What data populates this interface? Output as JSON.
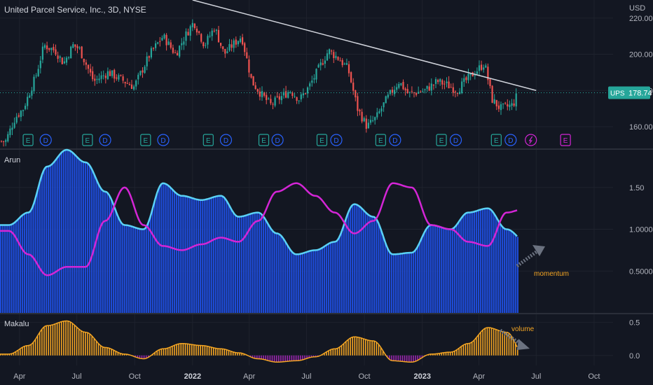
{
  "header": {
    "title": "United Parcel Service, Inc., 3D, NYSE",
    "currency": "USD"
  },
  "colors": {
    "background": "#131722",
    "up": "#26a69a",
    "down": "#ef5350",
    "trendline": "#d1d4dc",
    "arun_histogram": "#1e4bd6",
    "arun_cyan": "#5ad1f5",
    "arun_magenta": "#d425d6",
    "makalu_orange": "#f5a623",
    "makalu_purple": "#9c27b0",
    "annotation_arrow": "#6b7280",
    "momentum_text": "#f5a623",
    "volume_text": "#f5a623"
  },
  "price_pane": {
    "y_ticks": [
      "220.00",
      "200.00",
      "180.00",
      "160.00"
    ],
    "ylim": [
      148,
      230
    ],
    "last_price_badge": {
      "label": "UPS",
      "value": "178.74"
    },
    "event_markers": [
      {
        "type": "E",
        "t": 0.043
      },
      {
        "type": "D",
        "t": 0.07
      },
      {
        "type": "E",
        "t": 0.134
      },
      {
        "type": "D",
        "t": 0.161
      },
      {
        "type": "E",
        "t": 0.223
      },
      {
        "type": "D",
        "t": 0.25
      },
      {
        "type": "E",
        "t": 0.319
      },
      {
        "type": "D",
        "t": 0.346
      },
      {
        "type": "E",
        "t": 0.404
      },
      {
        "type": "D",
        "t": 0.425
      },
      {
        "type": "E",
        "t": 0.493
      },
      {
        "type": "D",
        "t": 0.515
      },
      {
        "type": "E",
        "t": 0.583
      },
      {
        "type": "D",
        "t": 0.605
      },
      {
        "type": "E",
        "t": 0.676
      },
      {
        "type": "D",
        "t": 0.698
      },
      {
        "type": "E",
        "t": 0.76
      },
      {
        "type": "D",
        "t": 0.782
      },
      {
        "type": "S",
        "t": 0.813
      },
      {
        "type": "E",
        "t": 0.866
      }
    ]
  },
  "arun_pane": {
    "title": "Arun",
    "y_ticks": [
      "1.50",
      "1.0000",
      "0.5000"
    ],
    "ylim": [
      0,
      1.95
    ],
    "annotation": "momentum"
  },
  "makalu_pane": {
    "title": "Makalu",
    "y_ticks": [
      "0.5",
      "0.0"
    ],
    "ylim": [
      -0.15,
      0.62
    ],
    "annotation": "volume"
  },
  "x_axis": {
    "labels": [
      {
        "text": "Apr",
        "bold": false
      },
      {
        "text": "Jul",
        "bold": false
      },
      {
        "text": "Oct",
        "bold": false
      },
      {
        "text": "2022",
        "bold": true
      },
      {
        "text": "Apr",
        "bold": false
      },
      {
        "text": "Jul",
        "bold": false
      },
      {
        "text": "Oct",
        "bold": false
      },
      {
        "text": "2023",
        "bold": true
      },
      {
        "text": "Apr",
        "bold": false
      },
      {
        "text": "Jul",
        "bold": false
      },
      {
        "text": "Oct",
        "bold": false
      }
    ]
  },
  "chart_data": [
    {
      "type": "candlestick",
      "title": "United Parcel Service, Inc., 3D, NYSE",
      "x_range": [
        "2021-03",
        "2023-10"
      ],
      "y_range": [
        148,
        230
      ],
      "close_anchors": [
        [
          "2021-03-10",
          152
        ],
        [
          "2021-03-25",
          165
        ],
        [
          "2021-04-07",
          170
        ],
        [
          "2021-04-27",
          188
        ],
        [
          "2021-05-10",
          205
        ],
        [
          "2021-05-28",
          202
        ],
        [
          "2021-06-10",
          195
        ],
        [
          "2021-06-25",
          205
        ],
        [
          "2021-07-05",
          203
        ],
        [
          "2021-07-28",
          185
        ],
        [
          "2021-08-20",
          190
        ],
        [
          "2021-09-10",
          186
        ],
        [
          "2021-09-30",
          182
        ],
        [
          "2021-10-25",
          200
        ],
        [
          "2021-11-15",
          210
        ],
        [
          "2021-12-05",
          200
        ],
        [
          "2021-12-20",
          210
        ],
        [
          "2022-01-03",
          218
        ],
        [
          "2022-01-20",
          205
        ],
        [
          "2022-02-05",
          215
        ],
        [
          "2022-02-20",
          200
        ],
        [
          "2022-03-05",
          205
        ],
        [
          "2022-03-20",
          210
        ],
        [
          "2022-04-05",
          185
        ],
        [
          "2022-04-20",
          178
        ],
        [
          "2022-05-05",
          172
        ],
        [
          "2022-05-20",
          176
        ],
        [
          "2022-06-05",
          180
        ],
        [
          "2022-06-20",
          175
        ],
        [
          "2022-07-05",
          182
        ],
        [
          "2022-07-25",
          195
        ],
        [
          "2022-08-05",
          202
        ],
        [
          "2022-08-20",
          198
        ],
        [
          "2022-09-05",
          192
        ],
        [
          "2022-09-20",
          170
        ],
        [
          "2022-10-05",
          160
        ],
        [
          "2022-10-20",
          165
        ],
        [
          "2022-11-05",
          175
        ],
        [
          "2022-11-25",
          185
        ],
        [
          "2022-12-10",
          178
        ],
        [
          "2023-01-05",
          180
        ],
        [
          "2023-01-25",
          185
        ],
        [
          "2023-02-10",
          183
        ],
        [
          "2023-02-25",
          180
        ],
        [
          "2023-03-10",
          185
        ],
        [
          "2023-03-25",
          190
        ],
        [
          "2023-04-10",
          195
        ],
        [
          "2023-04-22",
          175
        ],
        [
          "2023-05-05",
          170
        ],
        [
          "2023-05-25",
          172
        ],
        [
          "2023-06-02",
          178.74
        ]
      ],
      "trendline": {
        "start": [
          "2022-01-01",
          230
        ],
        "end": [
          "2023-07-01",
          180
        ]
      },
      "last_close": 178.74
    },
    {
      "type": "bar",
      "title": "Arun",
      "series_note": "blue histogram with cyan and magenta oscillator lines",
      "cyan_line": [
        [
          "2021-03",
          1.05
        ],
        [
          "2021-04",
          1.2
        ],
        [
          "2021-05",
          1.75
        ],
        [
          "2021-06",
          1.95
        ],
        [
          "2021-07",
          1.8
        ],
        [
          "2021-08",
          1.45
        ],
        [
          "2021-09",
          1.05
        ],
        [
          "2021-10",
          1.0
        ],
        [
          "2021-11",
          1.55
        ],
        [
          "2021-12",
          1.4
        ],
        [
          "2022-01",
          1.35
        ],
        [
          "2022-02",
          1.4
        ],
        [
          "2022-03",
          1.15
        ],
        [
          "2022-04",
          1.2
        ],
        [
          "2022-05",
          0.95
        ],
        [
          "2022-06",
          0.7
        ],
        [
          "2022-07",
          0.75
        ],
        [
          "2022-08",
          0.85
        ],
        [
          "2022-09",
          1.3
        ],
        [
          "2022-10",
          1.15
        ],
        [
          "2022-11",
          0.7
        ],
        [
          "2022-12",
          0.72
        ],
        [
          "2023-01",
          1.05
        ],
        [
          "2023-02",
          1.0
        ],
        [
          "2023-03",
          1.2
        ],
        [
          "2023-04",
          1.25
        ],
        [
          "2023-05",
          1.0
        ],
        [
          "2023-06",
          0.85
        ]
      ],
      "magenta_line": [
        [
          "2021-03",
          0.98
        ],
        [
          "2021-04",
          0.7
        ],
        [
          "2021-05",
          0.45
        ],
        [
          "2021-06",
          0.55
        ],
        [
          "2021-07",
          0.55
        ],
        [
          "2021-08",
          1.1
        ],
        [
          "2021-09",
          1.5
        ],
        [
          "2021-10",
          1.05
        ],
        [
          "2021-11",
          0.8
        ],
        [
          "2021-12",
          0.75
        ],
        [
          "2022-01",
          0.82
        ],
        [
          "2022-02",
          0.9
        ],
        [
          "2022-03",
          0.85
        ],
        [
          "2022-04",
          1.1
        ],
        [
          "2022-05",
          1.45
        ],
        [
          "2022-06",
          1.55
        ],
        [
          "2022-07",
          1.4
        ],
        [
          "2022-08",
          1.2
        ],
        [
          "2022-09",
          0.95
        ],
        [
          "2022-10",
          1.1
        ],
        [
          "2022-11",
          1.55
        ],
        [
          "2022-12",
          1.5
        ],
        [
          "2023-01",
          1.05
        ],
        [
          "2023-02",
          1.0
        ],
        [
          "2023-03",
          0.85
        ],
        [
          "2023-04",
          0.8
        ],
        [
          "2023-05",
          1.2
        ],
        [
          "2023-06",
          1.25
        ]
      ]
    },
    {
      "type": "bar",
      "title": "Makalu",
      "values": [
        [
          "2021-03",
          0.02
        ],
        [
          "2021-04",
          0.15
        ],
        [
          "2021-05",
          0.45
        ],
        [
          "2021-06",
          0.52
        ],
        [
          "2021-07",
          0.35
        ],
        [
          "2021-08",
          0.12
        ],
        [
          "2021-09",
          0.02
        ],
        [
          "2021-10",
          -0.05
        ],
        [
          "2021-11",
          0.1
        ],
        [
          "2021-12",
          0.18
        ],
        [
          "2022-01",
          0.15
        ],
        [
          "2022-02",
          0.1
        ],
        [
          "2022-03",
          0.04
        ],
        [
          "2022-04",
          -0.05
        ],
        [
          "2022-05",
          -0.1
        ],
        [
          "2022-06",
          -0.08
        ],
        [
          "2022-07",
          -0.02
        ],
        [
          "2022-08",
          0.1
        ],
        [
          "2022-09",
          0.28
        ],
        [
          "2022-10",
          0.22
        ],
        [
          "2022-11",
          -0.08
        ],
        [
          "2022-12",
          -0.1
        ],
        [
          "2023-01",
          0.02
        ],
        [
          "2023-02",
          0.05
        ],
        [
          "2023-03",
          0.18
        ],
        [
          "2023-04",
          0.42
        ],
        [
          "2023-05",
          0.35
        ],
        [
          "2023-06",
          -0.05
        ]
      ]
    }
  ]
}
